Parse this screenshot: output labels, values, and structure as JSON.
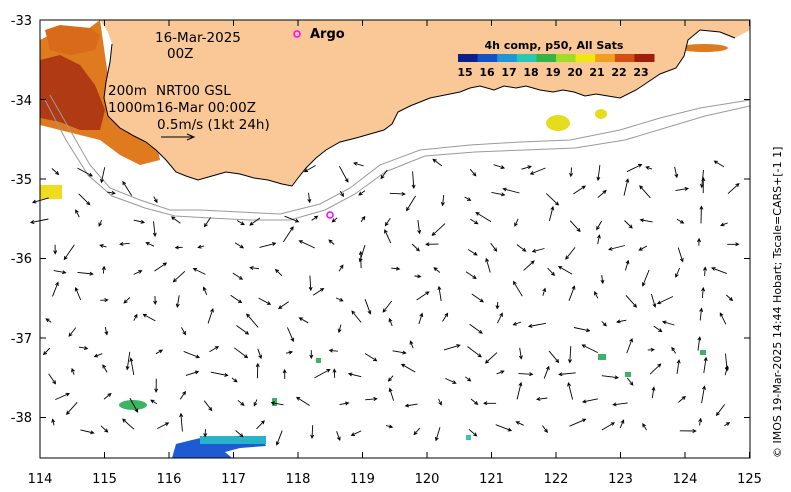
{
  "map": {
    "date_line": "16-Mar-2025",
    "hour_line": "00Z",
    "contour_200": "200m",
    "contour_1000": "1000m",
    "product": "NRT00 GSL",
    "product_time": "16-Mar 00:00Z",
    "scale_text": "0.5m/s (1kt 24h)",
    "argo_label": "Argo",
    "x_ticks": [
      "114",
      "115",
      "116",
      "117",
      "118",
      "119",
      "120",
      "121",
      "122",
      "123",
      "124",
      "125"
    ],
    "y_ticks": [
      "-33",
      "-34",
      "-35",
      "-36",
      "-37",
      "-38"
    ],
    "side_text": "© IMOS 19-Mar-2025 14:44 Hobart; Tscale=CARS+[-1 1]"
  },
  "colorbar": {
    "title": "4h comp, p50, All Sats",
    "labels": [
      "15",
      "16",
      "17",
      "18",
      "19",
      "20",
      "21",
      "22",
      "23"
    ],
    "colors": [
      "#0a1e8c",
      "#1450c8",
      "#1e96dc",
      "#28c8b4",
      "#32b446",
      "#a0dc28",
      "#f0e614",
      "#f0a01e",
      "#d25014",
      "#a01e0a"
    ]
  },
  "colors": {
    "land": "#f9c896",
    "sst_warm": "#c8501e",
    "sst_hot": "#a02814",
    "sst_yellow": "#e6dc1e",
    "sst_green": "#3cb464",
    "sst_teal": "#32c8b4",
    "sst_blue": "#1e50c8",
    "argo": "#ff00ff"
  }
}
